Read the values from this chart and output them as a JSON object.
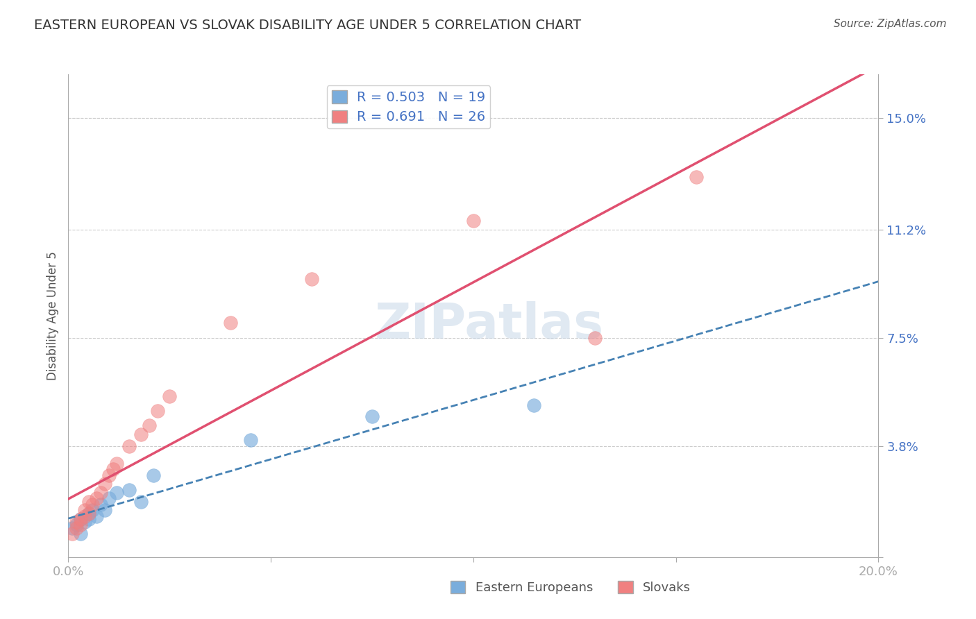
{
  "title": "EASTERN EUROPEAN VS SLOVAK DISABILITY AGE UNDER 5 CORRELATION CHART",
  "source_text": "Source: ZipAtlas.com",
  "xlabel": "",
  "ylabel": "Disability Age Under 5",
  "xlim": [
    0.0,
    0.2
  ],
  "ylim": [
    0.0,
    0.165
  ],
  "xticks": [
    0.0,
    0.05,
    0.1,
    0.15,
    0.2
  ],
  "xticklabels": [
    "0.0%",
    "",
    "",
    "",
    "20.0%"
  ],
  "yticks_right": [
    0.0,
    0.038,
    0.075,
    0.112,
    0.15
  ],
  "ytick_right_labels": [
    "",
    "3.8%",
    "7.5%",
    "11.2%",
    "15.0%"
  ],
  "grid_color": "#cccccc",
  "background_color": "#ffffff",
  "watermark_text": "ZIPatlas",
  "legend_blue_label": "R = 0.503   N = 19",
  "legend_pink_label": "R = 0.691   N = 26",
  "legend_box_label_blue": "Eastern Europeans",
  "legend_box_label_pink": "Slovaks",
  "blue_color": "#7aaddc",
  "pink_color": "#f08080",
  "blue_line_color": "#4682b4",
  "pink_line_color": "#e05070",
  "axis_label_color": "#4472c4",
  "title_color": "#333333",
  "eastern_european_x": [
    0.001,
    0.002,
    0.003,
    0.003,
    0.004,
    0.005,
    0.005,
    0.006,
    0.007,
    0.008,
    0.009,
    0.01,
    0.012,
    0.015,
    0.018,
    0.021,
    0.045,
    0.075,
    0.115
  ],
  "eastern_european_y": [
    0.01,
    0.011,
    0.008,
    0.013,
    0.012,
    0.015,
    0.013,
    0.016,
    0.014,
    0.018,
    0.016,
    0.02,
    0.022,
    0.023,
    0.019,
    0.028,
    0.04,
    0.048,
    0.052
  ],
  "slovak_x": [
    0.001,
    0.002,
    0.002,
    0.003,
    0.003,
    0.004,
    0.004,
    0.005,
    0.005,
    0.006,
    0.007,
    0.008,
    0.009,
    0.01,
    0.011,
    0.012,
    0.015,
    0.018,
    0.02,
    0.022,
    0.025,
    0.04,
    0.06,
    0.1,
    0.13,
    0.155
  ],
  "slovak_y": [
    0.008,
    0.01,
    0.012,
    0.011,
    0.013,
    0.014,
    0.016,
    0.015,
    0.019,
    0.018,
    0.02,
    0.022,
    0.025,
    0.028,
    0.03,
    0.032,
    0.038,
    0.042,
    0.045,
    0.05,
    0.055,
    0.08,
    0.095,
    0.115,
    0.075,
    0.13
  ]
}
